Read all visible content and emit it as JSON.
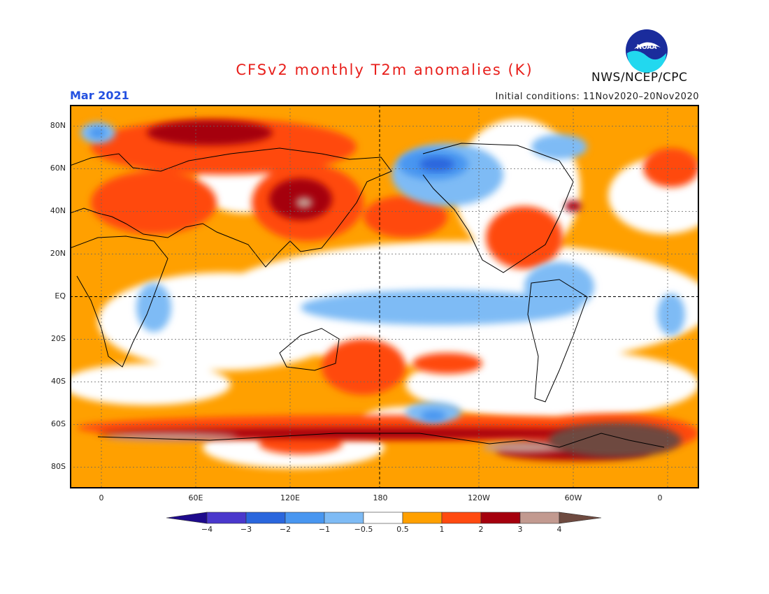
{
  "header": {
    "title": "CFSv2 monthly T2m anomalies (K)",
    "month": "Mar 2021",
    "initial_conditions": "Initial conditions: 11Nov2020–20Nov2020",
    "agency": "NWS/NCEP/CPC",
    "logo_text": "NOAA"
  },
  "map": {
    "projection": "equirectangular",
    "center_longitude": 180,
    "grid": "dotted",
    "y_axis": {
      "tick_labels": [
        "80N",
        "60N",
        "40N",
        "20N",
        "EQ",
        "20S",
        "40S",
        "60S",
        "80S"
      ],
      "tick_lats": [
        80,
        60,
        40,
        20,
        0,
        -20,
        -40,
        -60,
        -80
      ]
    },
    "x_axis": {
      "tick_labels": [
        "0",
        "60E",
        "120E",
        "180",
        "120W",
        "60W",
        "0"
      ],
      "tick_lons": [
        0,
        60,
        120,
        180,
        240,
        300,
        360
      ]
    }
  },
  "legend": {
    "type": "colorbar",
    "colors": [
      "#1e0a8c",
      "#4a38cc",
      "#2a66dd",
      "#4896f0",
      "#7ebbf5",
      "#ffffff",
      "#ffa000",
      "#ff4a10",
      "#a5000d",
      "#c29a90",
      "#6e4a40"
    ],
    "tick_labels": [
      "−4",
      "−3",
      "−2",
      "−1",
      "−0.5",
      "0.5",
      "1",
      "2",
      "3",
      "4"
    ]
  },
  "colors": {
    "title": "#e8201c",
    "month": "#2350e0",
    "background_anomaly": "#ffa000",
    "ocean_neutral": "#ffffff"
  }
}
